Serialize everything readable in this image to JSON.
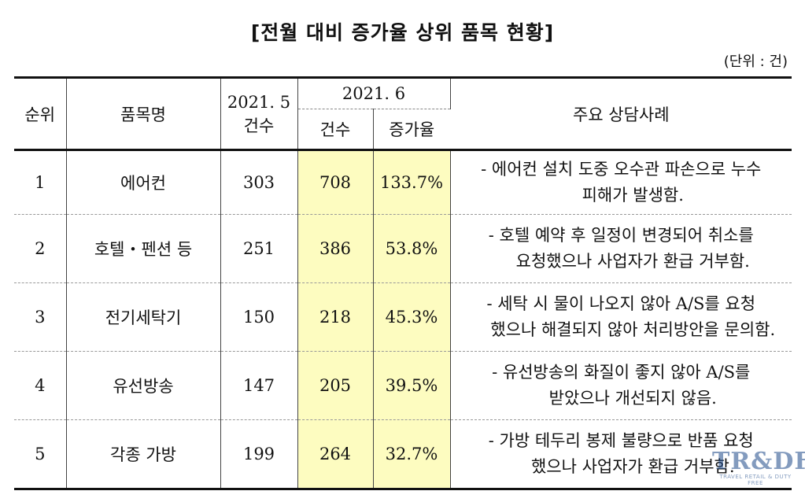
{
  "title": "[전월 대비 증가율 상위 품목 현황]",
  "unit": "(단위 : 건)",
  "headers": {
    "rank": "순위",
    "item": "품목명",
    "may_top": "2021. 5",
    "may_bottom": "건수",
    "june": "2021. 6",
    "june_count": "건수",
    "june_rate": "증가율",
    "cases": "주요 상담사례"
  },
  "rows": [
    {
      "rank": "1",
      "item": "에어컨",
      "may": "303",
      "june": "708",
      "rate": "133.7%",
      "case1": "- 에어컨 설치 도중 오수관 파손으로 누수",
      "case2": "피해가 발생함."
    },
    {
      "rank": "2",
      "item": "호텔・펜션 등",
      "may": "251",
      "june": "386",
      "rate": "53.8%",
      "case1": "- 호텔 예약 후 일정이 변경되어 취소를",
      "case2": "요청했으나 사업자가 환급 거부함."
    },
    {
      "rank": "3",
      "item": "전기세탁기",
      "may": "150",
      "june": "218",
      "rate": "45.3%",
      "case1": "- 세탁 시 물이 나오지 않아 A/S를 요청",
      "case2": "했으나 해결되지 않아 처리방안을 문의함."
    },
    {
      "rank": "4",
      "item": "유선방송",
      "may": "147",
      "june": "205",
      "rate": "39.5%",
      "case1": "- 유선방송의 화질이 좋지 않아 A/S를",
      "case2": "받았으나 개선되지 않음."
    },
    {
      "rank": "5",
      "item": "각종 가방",
      "may": "199",
      "june": "264",
      "rate": "32.7%",
      "case1": "- 가방 테두리 봉제 불량으로 반품 요청",
      "case2": "했으나 사업자가 환급 거부함."
    }
  ],
  "watermark": {
    "logo": "TR&DF",
    "sub": "TRAVEL RETAIL & DUTY FREE"
  },
  "colors": {
    "highlight": "#fdfcc0",
    "rule": "#111111"
  }
}
